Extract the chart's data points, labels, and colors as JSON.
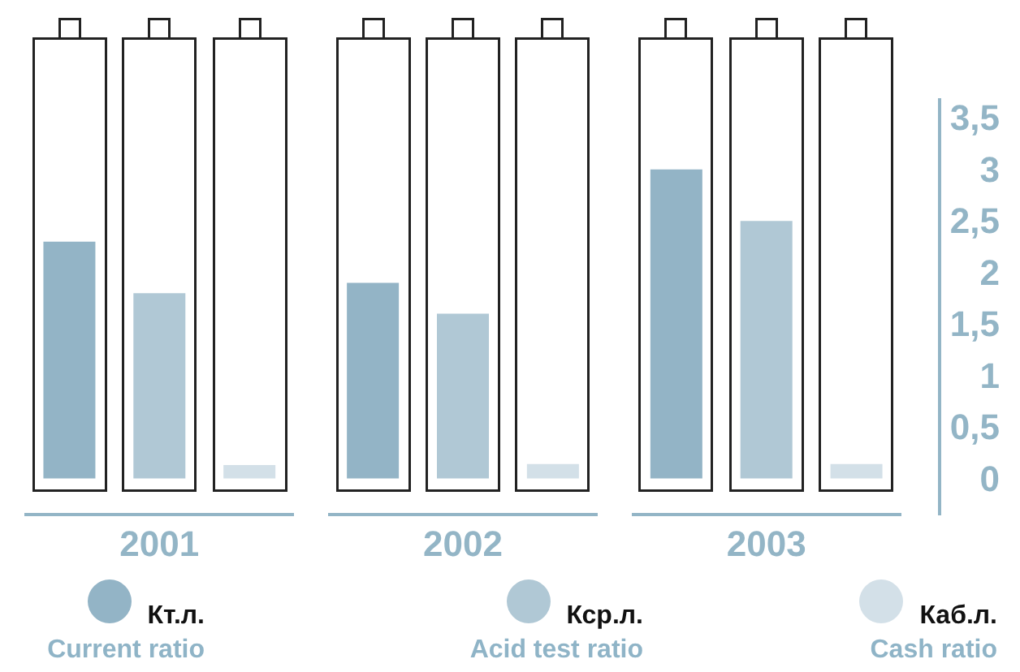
{
  "chart_data": {
    "type": "bar",
    "categories": [
      "2001",
      "2002",
      "2003"
    ],
    "series": [
      {
        "name": "Кт.л. Current ratio",
        "color": "#93b4c6",
        "values": [
          2.3,
          1.9,
          3.0
        ]
      },
      {
        "name": "Кср.л. Acid test ratio",
        "color": "#b0c8d5",
        "values": [
          1.8,
          1.6,
          2.5
        ]
      },
      {
        "name": "Каб.л. Cash ratio",
        "color": "#d3e0e8",
        "values": [
          0.13,
          0.14,
          0.14
        ]
      }
    ],
    "ylim": [
      -0.35,
      3.7
    ],
    "yticks": [
      0,
      {
        "value": 0.5,
        "label": "0,5"
      },
      1,
      {
        "value": 1.5,
        "label": "1,5"
      },
      2,
      {
        "value": 2.5,
        "label": "2,5"
      },
      3,
      {
        "value": 3.5,
        "label": "3,5"
      }
    ],
    "grid": false,
    "legend": "bottom"
  }
}
